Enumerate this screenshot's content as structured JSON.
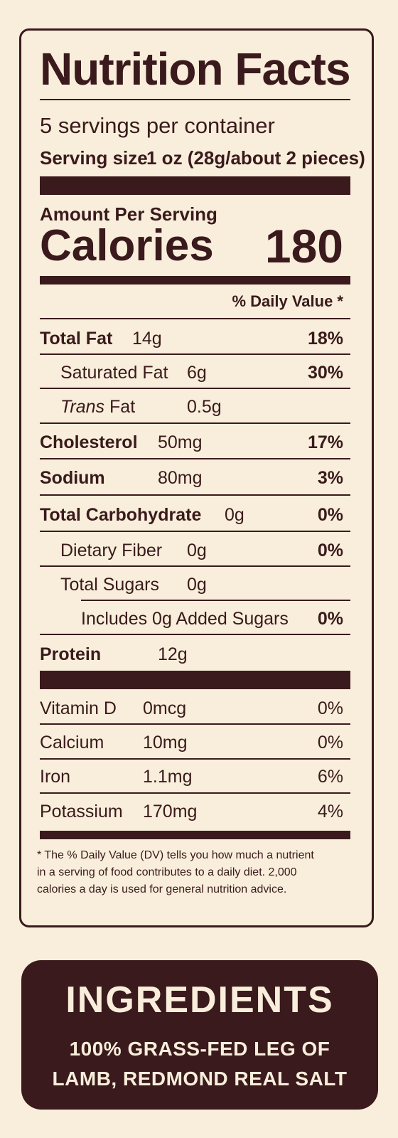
{
  "label": {
    "title": "Nutrition Facts",
    "servings": "5 servings per container",
    "serving_size_label": "Serving size",
    "serving_size_value": "1 oz (28g/about 2 pieces)",
    "amount_per_serving": "Amount Per Serving",
    "calories_label": "Calories",
    "calories_value": "180",
    "dv_header": "% Daily Value *",
    "nutrients": {
      "total_fat": {
        "label": "Total Fat",
        "amount": "14g",
        "dv": "18%"
      },
      "saturated_fat": {
        "label": "Saturated Fat",
        "amount": "6g",
        "dv": "30%"
      },
      "trans_fat": {
        "label_italic": "Trans",
        "label": "Fat",
        "amount": "0.5g"
      },
      "cholesterol": {
        "label": "Cholesterol",
        "amount": "50mg",
        "dv": "17%"
      },
      "sodium": {
        "label": "Sodium",
        "amount": "80mg",
        "dv": "3%"
      },
      "total_carbohydrate": {
        "label": "Total Carbohydrate",
        "amount": "0g",
        "dv": "0%"
      },
      "dietary_fiber": {
        "label": "Dietary Fiber",
        "amount": "0g",
        "dv": "0%"
      },
      "total_sugars": {
        "label": "Total Sugars",
        "amount": "0g"
      },
      "added_sugars": {
        "label": "Includes 0g Added Sugars",
        "dv": "0%"
      },
      "protein": {
        "label": "Protein",
        "amount": "12g"
      }
    },
    "vitamins": {
      "vitamin_d": {
        "label": "Vitamin D",
        "amount": "0mcg",
        "dv": "0%"
      },
      "calcium": {
        "label": "Calcium",
        "amount": "10mg",
        "dv": "0%"
      },
      "iron": {
        "label": "Iron",
        "amount": "1.1mg",
        "dv": "6%"
      },
      "potassium": {
        "label": "Potassium",
        "amount": "170mg",
        "dv": "4%"
      }
    },
    "footnote": {
      "line1": "* The % Daily Value (DV) tells you how much a nutrient",
      "line2": "in a serving of food contributes to a daily diet. 2,000",
      "line3": "calories a day is used for general nutrition advice."
    }
  },
  "ingredients": {
    "title": "INGREDIENTS",
    "line1": "100% GRASS-FED LEG OF",
    "line2": "LAMB, REDMOND REAL SALT"
  },
  "colors": {
    "background": "#f8eedb",
    "ink": "#3a1a1c"
  }
}
